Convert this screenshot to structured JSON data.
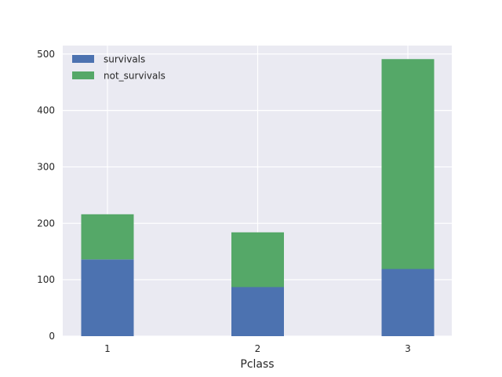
{
  "chart_data": {
    "type": "bar",
    "stacked": true,
    "categories": [
      "1",
      "2",
      "3"
    ],
    "series": [
      {
        "name": "survivals",
        "values": [
          136,
          87,
          119
        ],
        "color": "#4c72b0"
      },
      {
        "name": "not_survivals",
        "values": [
          80,
          97,
          372
        ],
        "color": "#55a868"
      }
    ],
    "xlabel": "Pclass",
    "ylabel": "",
    "title": "",
    "ylim": [
      0,
      515
    ],
    "yticks": [
      0,
      100,
      200,
      300,
      400,
      500
    ],
    "grid": true,
    "legend_position": "top-left",
    "background_color": "#eaeaf2",
    "grid_color": "#ffffff"
  }
}
